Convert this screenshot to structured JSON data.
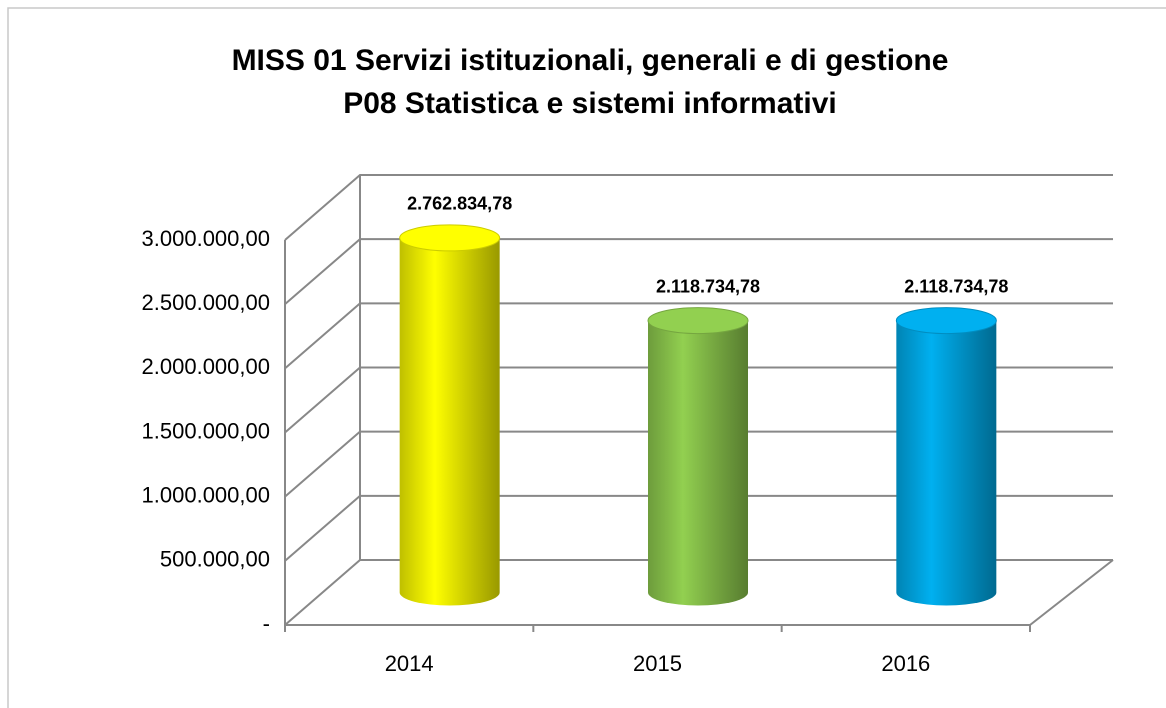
{
  "chart_data": {
    "type": "bar3d",
    "title": [
      "MISS 01 Servizi istituzionali,  generali e di gestione",
      "P08 Statistica e sistemi informativi"
    ],
    "categories": [
      "2014",
      "2015",
      "2016"
    ],
    "values": [
      2762834.78,
      2118734.78,
      2118734.78
    ],
    "value_labels": [
      "2.762.834,78",
      "2.118.734,78",
      "2.118.734,78"
    ],
    "colors": [
      "#ffff00",
      "#92d050",
      "#00b0f0"
    ],
    "ylim": [
      0,
      3000000
    ],
    "yticks": [
      {
        "value": 0,
        "label": "-"
      },
      {
        "value": 500000,
        "label": "500.000,00"
      },
      {
        "value": 1000000,
        "label": "1.000.000,00"
      },
      {
        "value": 1500000,
        "label": "1.500.000,00"
      },
      {
        "value": 2000000,
        "label": "2.000.000,00"
      },
      {
        "value": 2500000,
        "label": "2.500.000,00"
      },
      {
        "value": 3000000,
        "label": "3.000.000,00"
      }
    ],
    "grid": true
  }
}
